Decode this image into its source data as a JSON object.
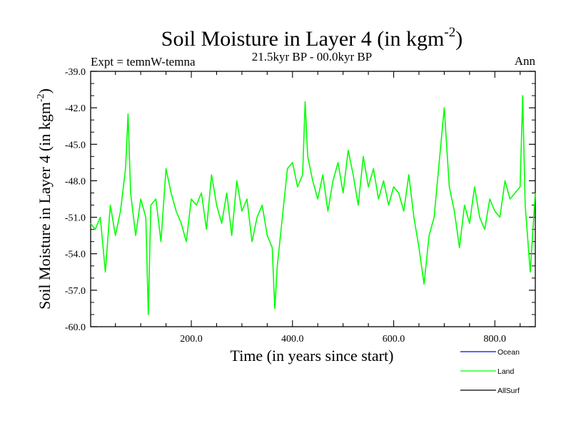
{
  "chart_data": {
    "type": "line",
    "title": "Soil Moisture in Layer 4 (in kgm",
    "title_sup": "-2",
    "title_close": ")",
    "left_label": "Expt = temnW-temna",
    "center_label": "21.5kyr BP - 00.0kyr BP",
    "right_label": "Ann",
    "xlabel": "Time (in years since start)",
    "ylabel": "Soil Moisture in Layer 4 (in kgm",
    "ylabel_sup": "-2",
    "ylabel_close": ")",
    "xlim": [
      1,
      880
    ],
    "ylim": [
      -60.0,
      -39.0
    ],
    "x_ticks": [
      200.0,
      400.0,
      600.0,
      800.0
    ],
    "x_tick_labels": [
      "200.0",
      "400.0",
      "600.0",
      "800.0"
    ],
    "y_ticks": [
      -39.0,
      -42.0,
      -45.0,
      -48.0,
      -51.0,
      -54.0,
      -57.0,
      -60.0
    ],
    "y_tick_labels": [
      "-39.0",
      "-42.0",
      "-45.0",
      "-48.0",
      "-51.0",
      "-54.0",
      "-57.0",
      "-60.0"
    ],
    "legend": [
      {
        "name": "Ocean",
        "color": "#0000ff"
      },
      {
        "name": "Land",
        "color": "#00ff00"
      },
      {
        "name": "AllSurf",
        "color": "#000000"
      }
    ],
    "series": [
      {
        "name": "Land",
        "color": "#00ff00",
        "x": [
          1,
          10,
          20,
          30,
          40,
          50,
          60,
          70,
          75,
          80,
          90,
          100,
          110,
          115,
          120,
          130,
          140,
          150,
          160,
          170,
          180,
          190,
          200,
          210,
          220,
          230,
          240,
          250,
          260,
          270,
          280,
          290,
          300,
          310,
          320,
          330,
          340,
          350,
          360,
          365,
          370,
          380,
          390,
          400,
          410,
          420,
          425,
          430,
          440,
          450,
          460,
          470,
          480,
          490,
          500,
          510,
          520,
          530,
          540,
          550,
          560,
          570,
          580,
          590,
          600,
          610,
          620,
          630,
          640,
          650,
          660,
          670,
          680,
          690,
          700,
          710,
          720,
          730,
          740,
          750,
          760,
          770,
          780,
          790,
          800,
          810,
          820,
          830,
          840,
          850,
          855,
          860,
          870,
          880
        ],
        "values": [
          -51.5,
          -52.0,
          -51.0,
          -55.5,
          -50.0,
          -52.5,
          -50.5,
          -47.0,
          -42.5,
          -49.0,
          -52.5,
          -49.5,
          -51.0,
          -59.0,
          -50.0,
          -49.5,
          -53.0,
          -47.0,
          -49.0,
          -50.5,
          -51.5,
          -53.0,
          -49.5,
          -50.0,
          -49.0,
          -52.0,
          -47.5,
          -50.0,
          -51.5,
          -49.0,
          -52.5,
          -48.0,
          -50.5,
          -49.5,
          -53.0,
          -51.0,
          -50.0,
          -52.5,
          -53.5,
          -58.5,
          -55.0,
          -51.0,
          -47.0,
          -46.5,
          -48.5,
          -47.5,
          -41.5,
          -46.0,
          -48.0,
          -49.5,
          -47.5,
          -50.5,
          -48.0,
          -46.5,
          -49.0,
          -45.5,
          -47.5,
          -50.0,
          -46.0,
          -48.5,
          -47.0,
          -49.5,
          -48.0,
          -50.0,
          -48.5,
          -49.0,
          -50.5,
          -47.5,
          -51.0,
          -53.5,
          -56.5,
          -52.5,
          -51.0,
          -46.5,
          -42.0,
          -48.5,
          -50.5,
          -53.5,
          -50.0,
          -51.5,
          -48.5,
          -51.0,
          -52.0,
          -49.5,
          -50.5,
          -51.0,
          -48.0,
          -49.5,
          -49.0,
          -48.5,
          -41.0,
          -50.0,
          -55.5,
          -49.0
        ]
      }
    ]
  }
}
